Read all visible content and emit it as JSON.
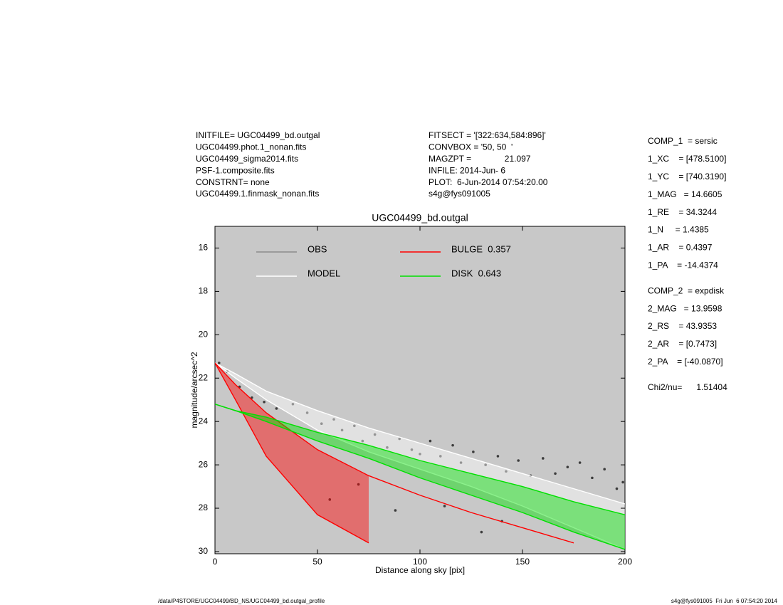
{
  "chart_data": {
    "type": "profile",
    "title": "UGC04499_bd.outgal",
    "x_label": "Distance along sky [pix]",
    "y_label": "magnitude/arcsec^2",
    "xlim": [
      0,
      200
    ],
    "ylim": [
      15.0,
      30.1
    ],
    "y_inverted": true,
    "xticks": [
      0,
      50,
      100,
      150,
      200
    ],
    "yticks": [
      16,
      18,
      20,
      22,
      24,
      26,
      28,
      30
    ],
    "background": "#c8c8c8",
    "info_left": [
      "INITFILE= UGC04499_bd.outgal",
      "UGC04499.phot.1_nonan.fits",
      "UGC04499_sigma2014.fits",
      "PSF-1.composite.fits",
      "CONSTRNT= none",
      "UGC04499.1.finmask_nonan.fits"
    ],
    "info_middle": [
      "FITSECT = '[322:634,584:896]'",
      "CONVBOX = '50, 50  '",
      "MAGZPT =              21.097",
      "INFILE: 2014-Jun- 6",
      "PLOT:  6-Jun-2014 07:54:20.00",
      "s4g@fys091005"
    ],
    "info_right": [
      [
        "COMP_1  = sersic",
        "1_XC    = [478.5100]",
        "1_YC    = [740.3190]",
        "1_MAG   = 14.6605",
        "1_RE    = 34.3244",
        "1_N     = 1.4385",
        "1_AR    = 0.4397",
        "1_PA    = -14.4374"
      ],
      [
        "COMP_2  = expdisk",
        "2_MAG   = 13.9598",
        "2_RS    = 43.9353",
        "2_AR    = [0.7473]",
        "2_PA    = [-40.0870]"
      ],
      [
        "Chi2/nu=      1.51404"
      ]
    ],
    "footer_left": "/data/P4STORE/UGC04499/BD_NS/UGC04499_bd.outgal_profile",
    "footer_right": "s4g@fys091005  Fri Jun  6 07:54:20 2014",
    "series": [
      {
        "name": "OBS",
        "color": "#8c8c8c",
        "point_color": "#3c3c3c",
        "kind": "points",
        "x": [
          2,
          6,
          12,
          18,
          24,
          30,
          38,
          45,
          52,
          58,
          62,
          68,
          72,
          78,
          84,
          90,
          96,
          100,
          105,
          110,
          116,
          120,
          126,
          132,
          138,
          142,
          148,
          154,
          160,
          166,
          172,
          178,
          184,
          190,
          196,
          199,
          56,
          88,
          112,
          140,
          70,
          130
        ],
        "values": [
          21.3,
          21.7,
          22.4,
          22.9,
          23.1,
          23.4,
          23.2,
          23.6,
          24.1,
          23.9,
          24.4,
          24.2,
          24.9,
          24.6,
          25.2,
          24.8,
          25.3,
          25.5,
          24.9,
          25.6,
          25.1,
          25.9,
          25.4,
          26.0,
          25.6,
          26.3,
          25.8,
          26.5,
          25.7,
          26.4,
          26.1,
          25.9,
          26.6,
          26.2,
          27.1,
          26.8,
          27.6,
          28.1,
          27.9,
          28.6,
          26.9,
          29.1
        ]
      },
      {
        "name": "MODEL",
        "color": "#ffffff",
        "kind": "band",
        "x": [
          0,
          10,
          25,
          50,
          75,
          100,
          125,
          150,
          175,
          200
        ],
        "values": [
          21.3,
          21.8,
          22.6,
          23.5,
          24.3,
          25.0,
          25.7,
          26.4,
          27.1,
          27.8
        ],
        "lower": [
          21.3,
          22.0,
          23.0,
          24.4,
          25.4,
          26.2,
          27.0,
          27.9,
          28.9,
          29.9
        ]
      },
      {
        "name": "BULGE  0.357",
        "color": "#ff0000",
        "kind": "band",
        "x": [
          0,
          10,
          25,
          50,
          75,
          100,
          125,
          150,
          175,
          200
        ],
        "values": [
          21.3,
          22.3,
          23.6,
          25.3,
          26.5,
          27.4,
          28.2,
          28.9,
          29.6,
          null
        ],
        "lower": [
          21.3,
          23.0,
          25.6,
          28.3,
          29.6,
          null,
          null,
          null,
          null,
          null
        ]
      },
      {
        "name": "DISK  0.643",
        "color": "#00e000",
        "kind": "band",
        "x": [
          0,
          10,
          25,
          50,
          75,
          100,
          125,
          150,
          175,
          200
        ],
        "values": [
          23.2,
          23.5,
          23.8,
          24.5,
          25.1,
          25.8,
          26.4,
          27.0,
          27.7,
          28.3
        ],
        "lower": [
          23.2,
          23.5,
          24.0,
          24.9,
          25.7,
          26.6,
          27.4,
          28.2,
          29.1,
          29.9
        ]
      }
    ]
  }
}
